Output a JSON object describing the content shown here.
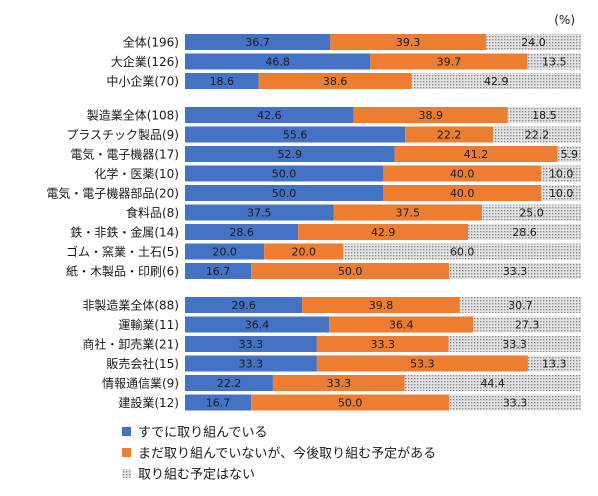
{
  "chart_data": {
    "type": "bar",
    "orientation": "horizontal",
    "stacked": true,
    "unit_label": "(%)",
    "xlim": [
      0,
      100
    ],
    "grid": false,
    "legend_position": "bottom",
    "series": [
      {
        "name": "すでに取り組んでいる",
        "color": "#4472C4",
        "pattern": "solid"
      },
      {
        "name": "まだ取り組んでいないが、今後取り組む予定がある",
        "color": "#ED7D31",
        "pattern": "solid"
      },
      {
        "name": "取り組む予定はない",
        "color": "#BFBFBF",
        "pattern": "dotted"
      }
    ],
    "groups": [
      {
        "rows": [
          {
            "label": "全体(196)",
            "values": [
              "36.7",
              "39.3",
              "24.0"
            ]
          },
          {
            "label": "大企業(126)",
            "values": [
              "46.8",
              "39.7",
              "13.5"
            ]
          },
          {
            "label": "中小企業(70)",
            "values": [
              "18.6",
              "38.6",
              "42.9"
            ]
          }
        ]
      },
      {
        "rows": [
          {
            "label": "製造業全体(108)",
            "values": [
              "42.6",
              "38.9",
              "18.5"
            ]
          },
          {
            "label": "プラスチック製品(9)",
            "values": [
              "55.6",
              "22.2",
              "22.2"
            ]
          },
          {
            "label": "電気・電子機器(17)",
            "values": [
              "52.9",
              "41.2",
              "5.9"
            ]
          },
          {
            "label": "化学・医薬(10)",
            "values": [
              "50.0",
              "40.0",
              "10.0"
            ]
          },
          {
            "label": "電気・電子機器部品(20)",
            "values": [
              "50.0",
              "40.0",
              "10.0"
            ]
          },
          {
            "label": "食料品(8)",
            "values": [
              "37.5",
              "37.5",
              "25.0"
            ]
          },
          {
            "label": "鉄・非鉄・金属(14)",
            "values": [
              "28.6",
              "42.9",
              "28.6"
            ]
          },
          {
            "label": "ゴム・窯業・土石(5)",
            "values": [
              "20.0",
              "20.0",
              "60.0"
            ]
          },
          {
            "label": "紙・木製品・印刷(6)",
            "values": [
              "16.7",
              "50.0",
              "33.3"
            ]
          }
        ]
      },
      {
        "rows": [
          {
            "label": "非製造業全体(88)",
            "values": [
              "29.6",
              "39.8",
              "30.7"
            ]
          },
          {
            "label": "運輸業(11)",
            "values": [
              "36.4",
              "36.4",
              "27.3"
            ]
          },
          {
            "label": "商社・卸売業(21)",
            "values": [
              "33.3",
              "33.3",
              "33.3"
            ]
          },
          {
            "label": "販売会社(15)",
            "values": [
              "33.3",
              "53.3",
              "13.3"
            ]
          },
          {
            "label": "情報通信業(9)",
            "values": [
              "22.2",
              "33.3",
              "44.4"
            ]
          },
          {
            "label": "建設業(12)",
            "values": [
              "16.7",
              "50.0",
              "33.3"
            ]
          }
        ]
      }
    ]
  }
}
